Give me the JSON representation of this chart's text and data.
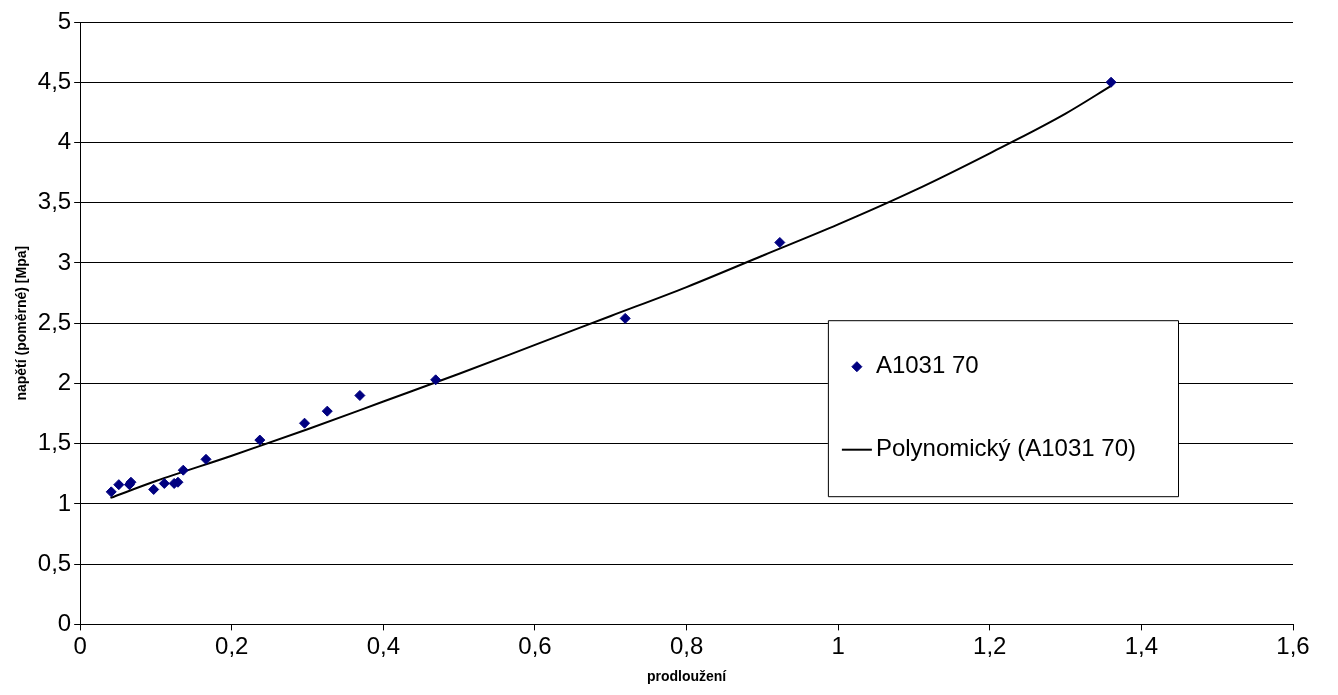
{
  "chart_data": {
    "type": "scatter",
    "xlabel": "prodloužení",
    "ylabel": "napětí (poměrné) [Mpa]",
    "xlim": [
      0,
      1.6
    ],
    "xticks": [
      {
        "value": 0,
        "label": "0"
      },
      {
        "value": 0.2,
        "label": "0,2"
      },
      {
        "value": 0.4,
        "label": "0,4"
      },
      {
        "value": 0.6,
        "label": "0,6"
      },
      {
        "value": 0.8,
        "label": "0,8"
      },
      {
        "value": 1,
        "label": "1"
      },
      {
        "value": 1.2,
        "label": "1,2"
      },
      {
        "value": 1.4,
        "label": "1,4"
      },
      {
        "value": 1.6,
        "label": "1,6"
      }
    ],
    "ylim": [
      0,
      5
    ],
    "yticks": [
      {
        "value": 0,
        "label": "0"
      },
      {
        "value": 0.5,
        "label": "0,5"
      },
      {
        "value": 1,
        "label": "1"
      },
      {
        "value": 1.5,
        "label": "1,5"
      },
      {
        "value": 2,
        "label": "2"
      },
      {
        "value": 2.5,
        "label": "2,5"
      },
      {
        "value": 3,
        "label": "3"
      },
      {
        "value": 3.5,
        "label": "3,5"
      },
      {
        "value": 4,
        "label": "4"
      },
      {
        "value": 4.5,
        "label": "4,5"
      },
      {
        "value": 5,
        "label": "5"
      }
    ],
    "grid": "y",
    "legend": "right",
    "marker": "diamond",
    "series": [
      {
        "name": "A1031 70",
        "color": "#000080",
        "x": [
          0.041,
          0.051,
          0.065,
          0.067,
          0.097,
          0.111,
          0.124,
          0.129,
          0.136,
          0.166,
          0.237,
          0.296,
          0.326,
          0.369,
          0.469,
          0.719,
          0.923,
          1.36
        ],
        "values": [
          1.1,
          1.16,
          1.16,
          1.18,
          1.12,
          1.17,
          1.17,
          1.18,
          1.28,
          1.37,
          1.53,
          1.67,
          1.77,
          1.9,
          2.03,
          2.54,
          3.17,
          4.5
        ]
      },
      {
        "name": "Polynomický (A1031 70)",
        "type": "line",
        "color": "#000000",
        "line_style": "solid",
        "marker": "none",
        "x": [
          0.04,
          0.1,
          0.2,
          0.3,
          0.4,
          0.5,
          0.6,
          0.7,
          0.8,
          0.9,
          1.0,
          1.1,
          1.2,
          1.3,
          1.36
        ],
        "values": [
          1.05,
          1.19,
          1.4,
          1.62,
          1.85,
          2.08,
          2.32,
          2.56,
          2.8,
          3.06,
          3.32,
          3.6,
          3.91,
          4.24,
          4.47
        ]
      }
    ]
  }
}
